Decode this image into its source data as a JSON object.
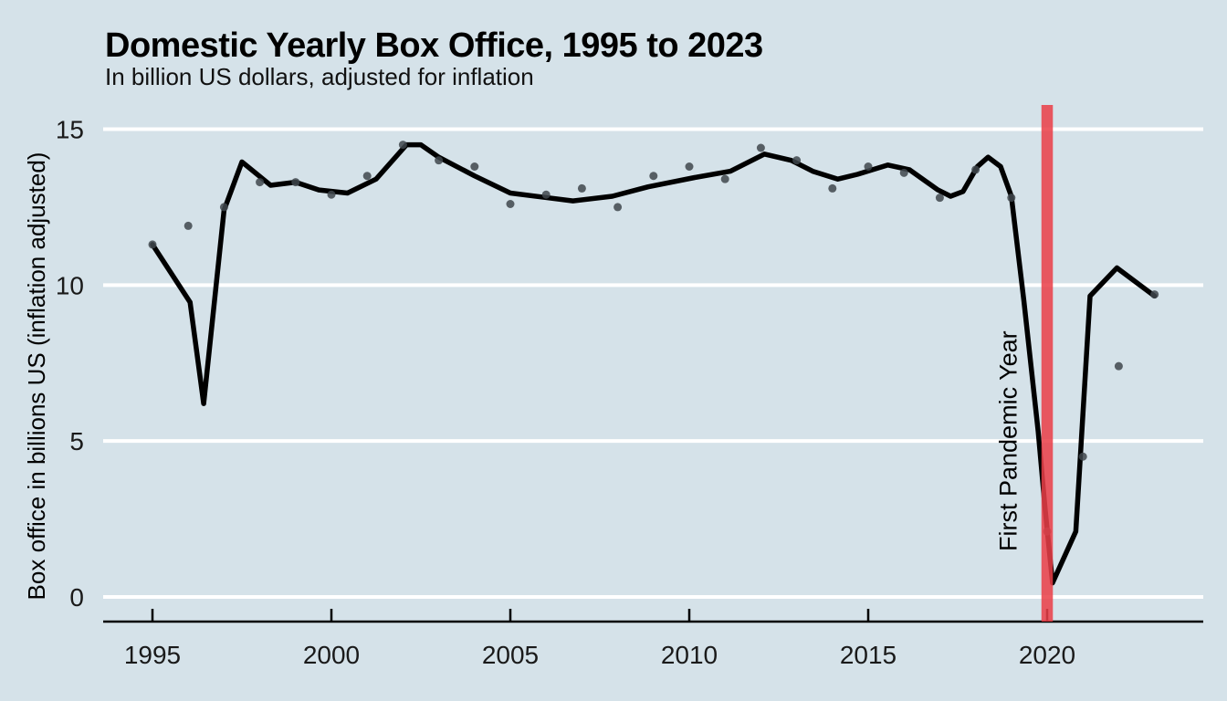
{
  "figure": {
    "title": "Domestic Yearly Box Office, 1995 to 2023",
    "subtitle": "In billion US dollars, adjusted for inflation"
  },
  "chart_data": {
    "type": "line",
    "title": "Domestic Yearly Box Office, 1995 to 2023",
    "subtitle": "In billion US dollars, adjusted for inflation",
    "xlabel": "",
    "ylabel": "Box office in billions US (inflation adjusted)",
    "xlim": [
      1993.6,
      2024.4
    ],
    "ylim": [
      -0.8,
      15.8
    ],
    "x_ticks": [
      1995,
      2000,
      2005,
      2010,
      2015,
      2020
    ],
    "y_ticks": [
      0,
      5,
      10,
      15
    ],
    "grid": "horizontal-white-major-only",
    "legend": "none",
    "series": [
      {
        "name": "yearly-box-office-points",
        "type": "scatter",
        "x": [
          1995,
          1996,
          1997,
          1998,
          1999,
          2000,
          2001,
          2002,
          2003,
          2004,
          2005,
          2006,
          2007,
          2008,
          2009,
          2010,
          2011,
          2012,
          2013,
          2014,
          2015,
          2016,
          2017,
          2018,
          2019,
          2020,
          2021,
          2022,
          2023
        ],
        "y": [
          11.3,
          11.9,
          12.5,
          13.3,
          13.3,
          12.9,
          13.5,
          14.5,
          14.0,
          13.8,
          12.6,
          12.9,
          13.1,
          12.5,
          13.5,
          13.8,
          13.4,
          14.4,
          14.0,
          13.1,
          13.8,
          13.6,
          12.8,
          13.7,
          12.8,
          2.1,
          4.5,
          7.4,
          9.7
        ]
      },
      {
        "name": "trend-line",
        "type": "line",
        "x": [
          1995.0,
          1996.05,
          1996.43,
          1997.0,
          1997.5,
          1998.3,
          1999.0,
          1999.65,
          2000.45,
          2001.25,
          2002.1,
          2002.5,
          2003.0,
          2004.0,
          2005.0,
          2006.05,
          2006.75,
          2007.85,
          2008.85,
          2010.15,
          2011.15,
          2012.1,
          2012.85,
          2013.45,
          2014.15,
          2014.7,
          2015.55,
          2016.15,
          2016.95,
          2017.3,
          2017.65,
          2018.05,
          2018.35,
          2018.7,
          2019.0,
          2019.35,
          2019.75,
          2019.95,
          2020.15,
          2020.8,
          2021.2,
          2021.95,
          2023.0
        ],
        "y": [
          11.3,
          9.45,
          6.2,
          12.4,
          13.95,
          13.2,
          13.3,
          13.05,
          12.95,
          13.4,
          14.5,
          14.5,
          14.1,
          13.5,
          12.95,
          12.8,
          12.7,
          12.85,
          13.15,
          13.45,
          13.65,
          14.2,
          14.0,
          13.65,
          13.4,
          13.55,
          13.85,
          13.7,
          13.05,
          12.85,
          13.0,
          13.8,
          14.1,
          13.8,
          12.85,
          9.5,
          5.3,
          2.75,
          0.45,
          2.1,
          9.65,
          10.55,
          9.65
        ]
      }
    ],
    "annotations": [
      {
        "name": "pandemic-band",
        "type": "vertical-band",
        "x_from": 2019.84,
        "x_to": 2020.16,
        "label": "First Pandemic Year",
        "label_x": 2018.9,
        "label_y": 5.0,
        "label_rotation": -90
      }
    ],
    "colors": {
      "background": "#d5e2e9",
      "gridline": "#ffffff",
      "axis": "#000000",
      "trend_line": "#000000",
      "points": "#3f474c",
      "band_red": "#ea3f48",
      "text": "#000000"
    }
  }
}
